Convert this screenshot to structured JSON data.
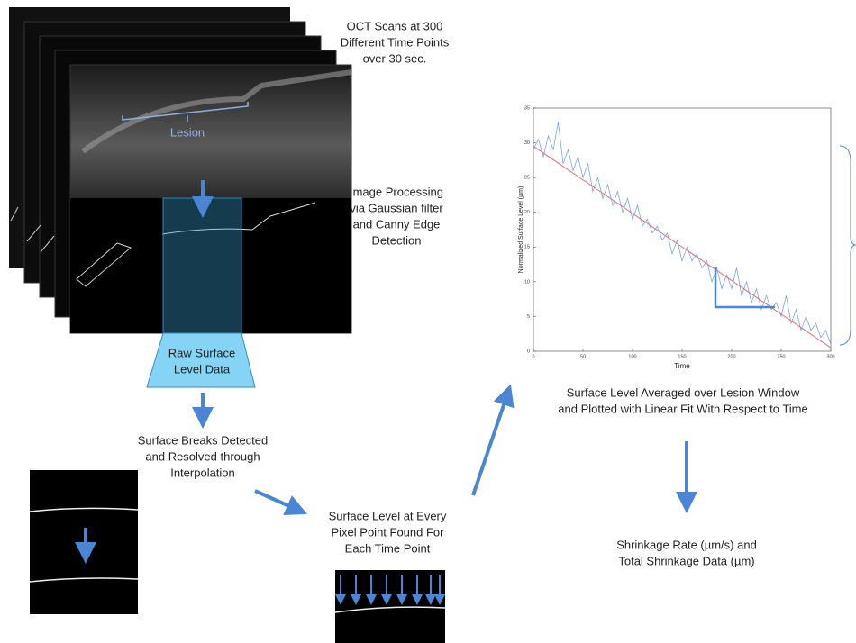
{
  "captions": {
    "oct": [
      "OCT Scans at 300",
      "Different Time Points",
      "over 30 sec."
    ],
    "lesion": "Lesion",
    "processing": [
      "Image Processing",
      "via Gaussian filter",
      "and Canny Edge",
      "Detection"
    ],
    "raw": [
      "Raw Surface",
      "Level Data"
    ],
    "breaks": [
      "Surface Breaks Detected",
      "and Resolved through",
      "Interpolation"
    ],
    "pixel": [
      "Surface Level at Every",
      "Pixel Point Found For",
      "Each Time Point"
    ],
    "averaged": [
      "Surface Level Averaged over Lesion Window",
      "and Plotted with Linear Fit With Respect to Time"
    ],
    "shrinkage": [
      "Shrinkage Rate (µm/s) and",
      "Total Shrinkage Data (µm)"
    ]
  },
  "plot": {
    "type": "line",
    "x_label": "Time",
    "y_label": "Normalized Surface Level (µm)",
    "xlim": [
      0,
      300
    ],
    "ylim": [
      0,
      35
    ],
    "xticks": [
      0,
      50,
      100,
      150,
      200,
      250,
      300
    ],
    "yticks": [
      0,
      5,
      10,
      15,
      20,
      25,
      30,
      35
    ],
    "series": [
      {
        "color": "#7aa6dc",
        "x": [
          0,
          5,
          10,
          15,
          20,
          25,
          30,
          35,
          40,
          45,
          50,
          55,
          60,
          65,
          70,
          75,
          80,
          85,
          90,
          95,
          100,
          105,
          110,
          115,
          120,
          125,
          130,
          135,
          140,
          145,
          150,
          155,
          160,
          165,
          170,
          175,
          180,
          185,
          190,
          195,
          200,
          205,
          210,
          215,
          220,
          225,
          230,
          235,
          240,
          245,
          250,
          255,
          260,
          265,
          270,
          275,
          280,
          285,
          290,
          295,
          300
        ],
        "values": [
          29,
          30.5,
          28,
          31,
          29,
          33,
          27,
          29,
          26,
          28,
          25,
          27,
          23,
          25,
          22,
          24,
          21,
          23,
          20,
          22,
          19,
          21,
          18,
          19,
          17,
          18,
          16,
          17,
          14,
          16,
          13,
          15,
          13,
          14,
          12,
          13,
          10,
          12,
          9,
          11,
          9,
          12,
          8,
          10,
          7,
          9,
          6,
          8,
          6,
          7,
          5,
          8,
          4,
          6,
          3,
          5,
          3,
          4,
          2,
          3,
          1
        ]
      },
      {
        "color": "#e0707a",
        "x": [
          0,
          300
        ],
        "values": [
          29.5,
          0.5
        ]
      }
    ]
  }
}
